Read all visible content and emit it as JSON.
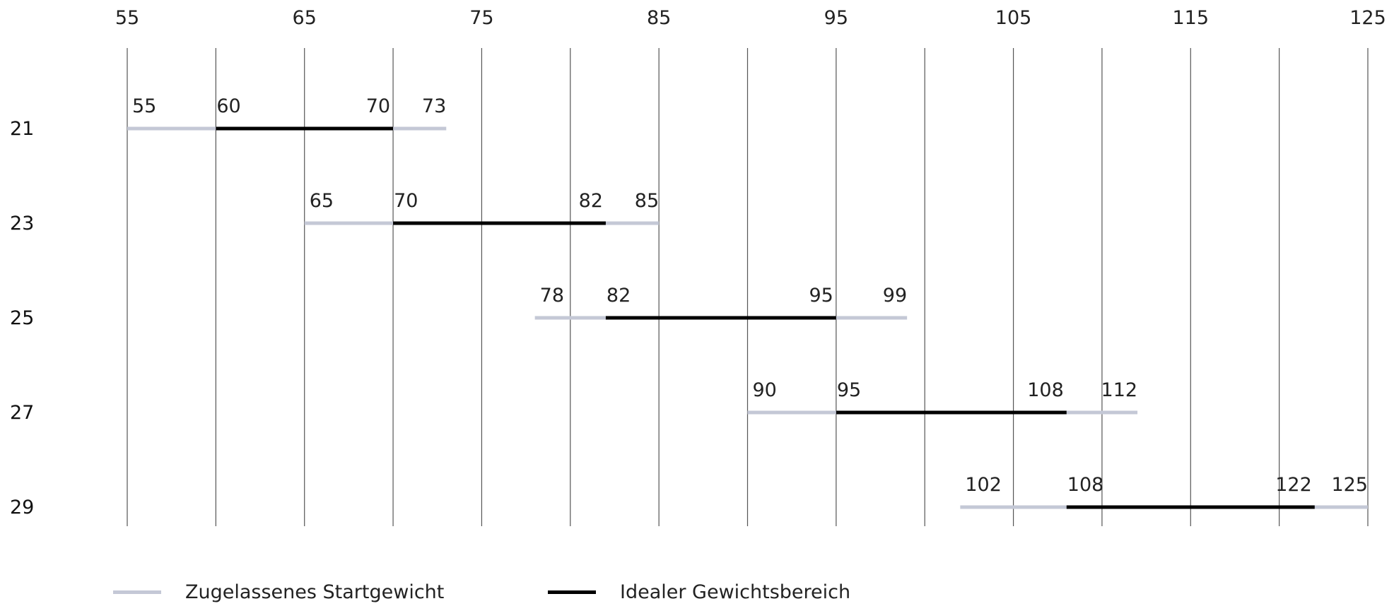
{
  "chart_data": {
    "type": "range-bar",
    "x_ticks": [
      55,
      65,
      75,
      85,
      95,
      105,
      115,
      125
    ],
    "xlim": [
      55,
      125
    ],
    "grid": true,
    "legend_position": "bottom-left",
    "rows": [
      {
        "label": "21",
        "allowed": [
          55,
          73
        ],
        "ideal": [
          60,
          70
        ]
      },
      {
        "label": "23",
        "allowed": [
          65,
          85
        ],
        "ideal": [
          70,
          82
        ]
      },
      {
        "label": "25",
        "allowed": [
          78,
          99
        ],
        "ideal": [
          82,
          95
        ]
      },
      {
        "label": "27",
        "allowed": [
          90,
          112
        ],
        "ideal": [
          95,
          108
        ]
      },
      {
        "label": "29",
        "allowed": [
          102,
          125
        ],
        "ideal": [
          108,
          122
        ]
      }
    ],
    "legend": [
      {
        "key": "allowed",
        "label": "Zugelassenes Startgewicht",
        "color": "#c4c8d6"
      },
      {
        "key": "ideal",
        "label": "Idealer Gewichtsbereich",
        "color": "#000000"
      }
    ]
  }
}
